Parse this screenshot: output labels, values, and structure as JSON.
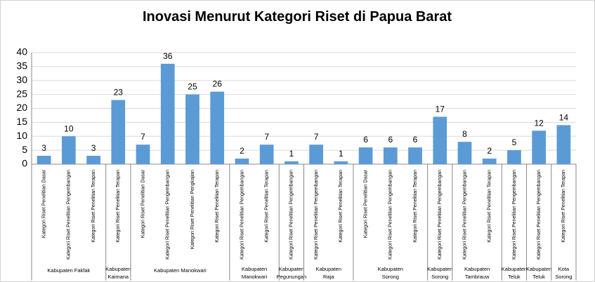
{
  "chart_data": {
    "type": "bar",
    "title": "Inovasi Menurut Kategori Riset di Papua Barat",
    "color": "#5b9bd5",
    "ylim": [
      0,
      40
    ],
    "yticks": [
      0,
      5,
      10,
      15,
      20,
      25,
      30,
      35,
      40
    ],
    "grid": true,
    "groups": [
      {
        "name_lines": [
          "Kabupaten Fakfak"
        ],
        "categories": [
          "Kategori Riset Penelitian Dasar",
          "Kategori Riset Penelitian Pengembangan",
          "Kategori Riset Penelitian Terapan"
        ],
        "values": [
          3,
          10,
          3
        ]
      },
      {
        "name_lines": [
          "Kabupaten",
          "Kaimana"
        ],
        "categories": [
          "Kategori Riset Penelitian Terapan"
        ],
        "values": [
          23
        ]
      },
      {
        "name_lines": [
          "Kabupaten Manokwari"
        ],
        "categories": [
          "Kategori Riset Penelitian Dasar",
          "Kategori Riset Penelitian Pengembangan",
          "Kategori Riset Penelitian Pengkajian",
          "Kategori Riset Penelitian Terapan"
        ],
        "values": [
          7,
          36,
          25,
          26
        ]
      },
      {
        "name_lines": [
          "Kabupaten",
          "Manokwari"
        ],
        "categories": [
          "Kategori Riset Penelitian Pengembangan",
          "Kategori Riset Penelitian Terapan"
        ],
        "values": [
          2,
          7
        ]
      },
      {
        "name_lines": [
          "Kabupaten",
          "Pegunungan"
        ],
        "categories": [
          "Kategori Riset Penelitian Pengembangan"
        ],
        "values": [
          1
        ]
      },
      {
        "name_lines": [
          "Kabupaten",
          "Raja"
        ],
        "categories": [
          "Kategori Riset Penelitian Pengembangan",
          "Kategori Riset Penelitian Terapan"
        ],
        "values": [
          7,
          1
        ]
      },
      {
        "name_lines": [
          "Kabupaten",
          "Sorong"
        ],
        "categories": [
          "Kategori Riset Penelitian Dasar",
          "Kategori Riset Penelitian Pengembangan",
          "Kategori Riset Penelitian Terapan"
        ],
        "values": [
          6,
          6,
          6
        ]
      },
      {
        "name_lines": [
          "Kabupaten",
          "Sorong"
        ],
        "categories": [
          "Kategori Riset Penelitian Pengembangan"
        ],
        "values": [
          17
        ]
      },
      {
        "name_lines": [
          "Kabupaten",
          "Tambrauw"
        ],
        "categories": [
          "Kategori Riset Penelitian Pengembangan",
          "Kategori Riset Penelitian Terapan"
        ],
        "values": [
          8,
          2
        ]
      },
      {
        "name_lines": [
          "Kabupaten",
          "Teluk"
        ],
        "categories": [
          "Kategori Riset Penelitian Pengembangan"
        ],
        "values": [
          5
        ]
      },
      {
        "name_lines": [
          "Kabupaten",
          "Teluk"
        ],
        "categories": [
          "Kategori Riset Penelitian Pengembangan"
        ],
        "values": [
          12
        ]
      },
      {
        "name_lines": [
          "Kota",
          "Sorong"
        ],
        "categories": [
          "Kategori Riset Penelitian Terapan"
        ],
        "values": [
          14
        ]
      }
    ]
  }
}
